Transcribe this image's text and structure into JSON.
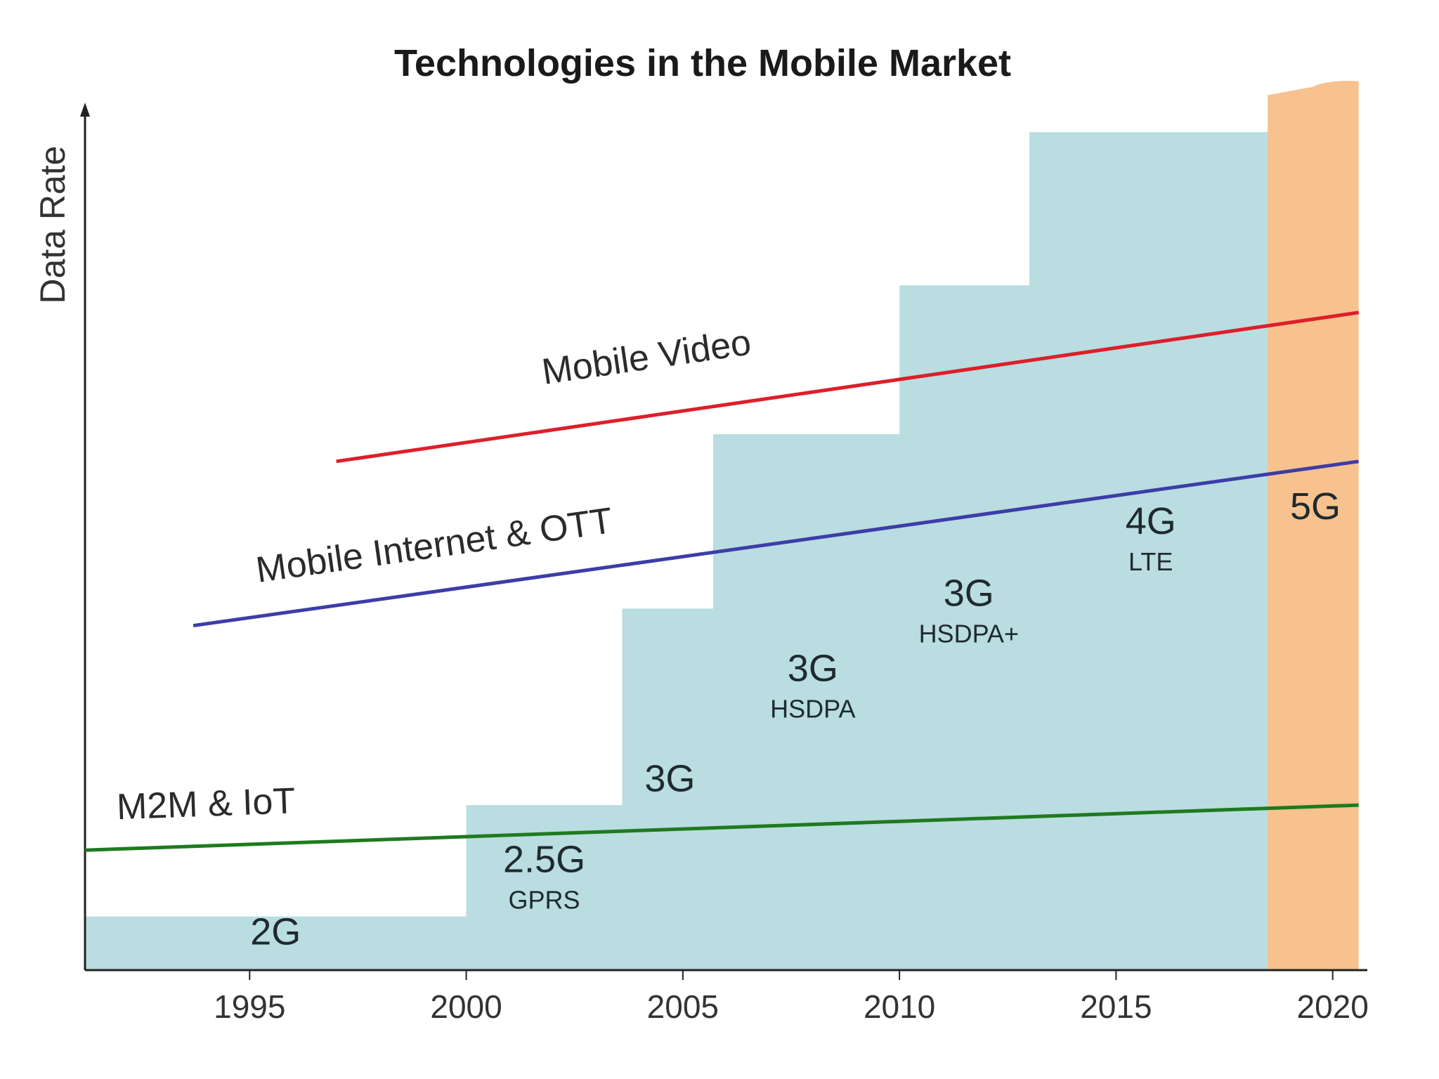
{
  "chart_data": {
    "type": "area",
    "title": "Technologies in the Mobile Market",
    "xlabel": "",
    "ylabel": "Data Rate",
    "xlim": [
      1991.2,
      2020.8
    ],
    "ylim": [
      0,
      100
    ],
    "x_ticks": [
      1995,
      2000,
      2005,
      2010,
      2015,
      2020
    ],
    "grid": false,
    "legend": "none",
    "colors": {
      "generation_fill": "#b9dde0",
      "fiveg_fill": "#f7c28e",
      "mobile_video": "#dd1f2b",
      "mobile_internet": "#3d3da8",
      "m2m_iot": "#1f7a1f",
      "axis": "#222222"
    },
    "generations": [
      {
        "label": "2G",
        "sublabel": "",
        "x_start": 1991.2,
        "x_end": 2000.0,
        "level": 6.3
      },
      {
        "label": "2.5G",
        "sublabel": "GPRS",
        "x_start": 2000.0,
        "x_end": 2003.6,
        "level": 19.4
      },
      {
        "label": "3G",
        "sublabel": "",
        "x_start": 2003.6,
        "x_end": 2005.7,
        "level": 42.5
      },
      {
        "label": "3G",
        "sublabel": "HSDPA",
        "x_start": 2005.7,
        "x_end": 2010.0,
        "level": 63.0
      },
      {
        "label": "3G",
        "sublabel": "HSDPA+",
        "x_start": 2010.0,
        "x_end": 2013.0,
        "level": 80.5
      },
      {
        "label": "4G",
        "sublabel": "LTE",
        "x_start": 2013.0,
        "x_end": 2018.5,
        "level": 98.5
      },
      {
        "label": "5G",
        "sublabel": "",
        "x_start": 2018.5,
        "x_end": 2020.6,
        "level": 104.5
      }
    ],
    "generation_label_positions": [
      {
        "x": 1995.6,
        "y": 3.0
      },
      {
        "x": 2001.8,
        "y": 11.5
      },
      {
        "x": 2004.7,
        "y": 21.0
      },
      {
        "x": 2008.0,
        "y": 34.0
      },
      {
        "x": 2011.6,
        "y": 42.8
      },
      {
        "x": 2015.8,
        "y": 51.3
      },
      {
        "x": 2019.6,
        "y": 53.0
      }
    ],
    "series": [
      {
        "name": "Mobile Video",
        "x": [
          1997.0,
          2020.6
        ],
        "y": [
          59.8,
          77.3
        ],
        "label_at": 2004.2,
        "label_offset": 5.5
      },
      {
        "name": "Mobile Internet & OTT",
        "x": [
          1993.7,
          2020.6
        ],
        "y": [
          40.5,
          59.8
        ],
        "label_at": 1999.3,
        "label_offset": 4.0
      },
      {
        "name": "M2M & IoT",
        "x": [
          1991.2,
          2020.6
        ],
        "y": [
          14.1,
          19.4
        ],
        "label_at": 1994.0,
        "label_offset": 3.5
      }
    ]
  }
}
